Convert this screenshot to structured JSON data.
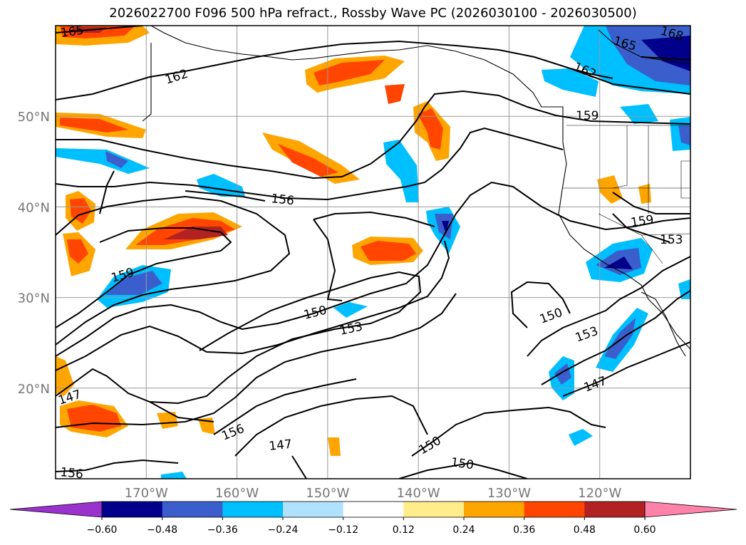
{
  "title": "2026022700 F096 500 hPa refract., Rossby Wave PC (2026030100 - 2026030500)",
  "map": {
    "lat_labels": [
      "20°N",
      "30°N",
      "40°N",
      "50°N"
    ],
    "lon_labels": [
      "170°W",
      "160°W",
      "150°W",
      "140°W",
      "130°W",
      "120°W"
    ],
    "lat_values": [
      20,
      30,
      40,
      50
    ],
    "lon_values": [
      -170,
      -160,
      -150,
      -140,
      -130,
      -120
    ],
    "extent": {
      "lon_min": -180,
      "lon_max": -110,
      "lat_min": 10,
      "lat_max": 60
    },
    "contour_labels": [
      "165",
      "162",
      "159",
      "156",
      "150",
      "153",
      "147",
      "168"
    ]
  },
  "colorbar": {
    "colors": [
      "#9a32cd",
      "#00008b",
      "#3a5fcd",
      "#00bfff",
      "#b0e2ff",
      "#ffffff",
      "#ffec8b",
      "#ffa500",
      "#ff4500",
      "#b22222",
      "#ff82ab"
    ],
    "tick_labels": [
      "−0.60",
      "−0.48",
      "−0.36",
      "−0.24",
      "−0.12",
      "0.12",
      "0.24",
      "0.36",
      "0.48",
      "0.60"
    ]
  }
}
